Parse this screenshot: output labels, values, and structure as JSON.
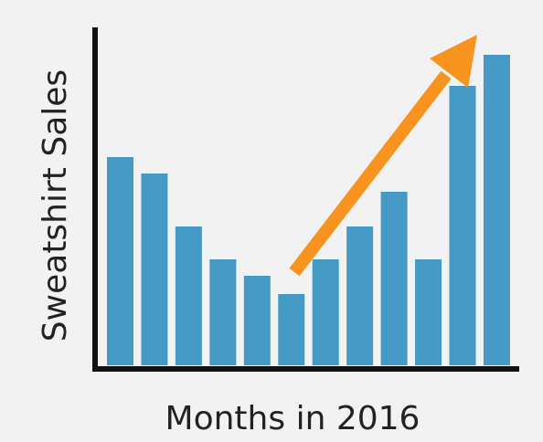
{
  "chart_data": {
    "type": "bar",
    "x_label": "Months in 2016",
    "y_label": "Sweatshirt Sales",
    "categories": [
      null,
      null,
      null,
      null,
      null,
      null,
      null,
      null,
      null,
      null,
      null,
      null
    ],
    "values": [
      228,
      210,
      152,
      116,
      98,
      78,
      116,
      152,
      190,
      116,
      306,
      340
    ],
    "color": "#4499c5",
    "ylim": [
      0,
      370
    ]
  }
}
